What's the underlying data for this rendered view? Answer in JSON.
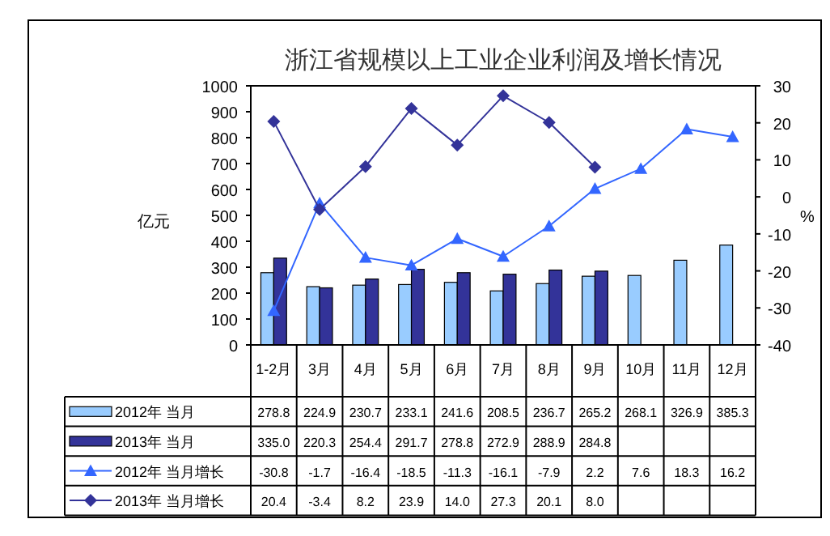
{
  "chart_data": {
    "type": "bar",
    "title": "浙江省规模以上工业企业利润及增长情况",
    "ylabel": "亿元",
    "y2label": "%",
    "categories": [
      "1-2月",
      "3月",
      "4月",
      "5月",
      "6月",
      "7月",
      "8月",
      "9月",
      "10月",
      "11月",
      "12月"
    ],
    "ylim": [
      0,
      1000
    ],
    "yticks": [
      0,
      100,
      200,
      300,
      400,
      500,
      600,
      700,
      800,
      900,
      1000
    ],
    "y2lim": [
      -40,
      30
    ],
    "y2ticks": [
      -40,
      -30,
      -20,
      -10,
      0,
      10,
      20,
      30
    ],
    "grid": false,
    "legend": "bottom",
    "series": [
      {
        "name": "2012年 当月",
        "color": "#99ccff",
        "values": [
          278.8,
          224.9,
          230.7,
          233.1,
          241.6,
          208.5,
          236.7,
          265.2,
          268.1,
          326.9,
          385.3
        ],
        "value_labels": [
          "278.8",
          "224.9",
          "230.7",
          "233.1",
          "241.6",
          "208.5",
          "236.7",
          "265.2",
          "268.1",
          "326.9",
          "385.3"
        ]
      },
      {
        "name": "2013年 当月",
        "color": "#333399",
        "values": [
          335.0,
          220.3,
          254.4,
          291.7,
          278.8,
          272.9,
          288.9,
          284.8,
          null,
          null,
          null
        ],
        "value_labels": [
          "335.0",
          "220.3",
          "254.4",
          "291.7",
          "278.8",
          "272.9",
          "288.9",
          "284.8",
          null,
          null,
          null
        ]
      },
      {
        "name": "2012年 当月增长",
        "type": "line",
        "axis": "y2",
        "marker": "triangle",
        "color": "#3366ff",
        "values": [
          -30.8,
          -1.7,
          -16.4,
          -18.5,
          -11.3,
          -16.1,
          -7.9,
          2.2,
          7.6,
          18.3,
          16.2
        ],
        "value_labels": [
          "-30.8",
          "-1.7",
          "-16.4",
          "-18.5",
          "-11.3",
          "-16.1",
          "-7.9",
          "2.2",
          "7.6",
          "18.3",
          "16.2"
        ]
      },
      {
        "name": "2013年 当月增长",
        "type": "line",
        "axis": "y2",
        "marker": "diamond",
        "color": "#333399",
        "values": [
          20.4,
          -3.4,
          8.2,
          23.9,
          14.0,
          27.3,
          20.1,
          8.0,
          null,
          null,
          null
        ],
        "value_labels": [
          "20.4",
          "-3.4",
          "8.2",
          "23.9",
          "14.0",
          "27.3",
          "20.1",
          "8.0",
          null,
          null,
          null
        ]
      }
    ]
  }
}
